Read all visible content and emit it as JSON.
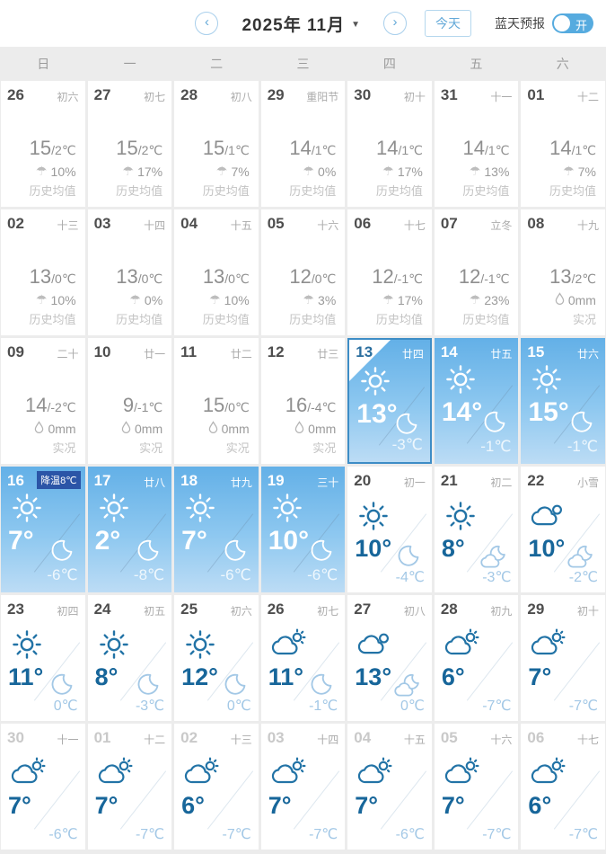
{
  "header": {
    "title": "2025年 11月",
    "prev_label": "‹",
    "next_label": "›",
    "caret": "▼",
    "today_label": "今天",
    "blue_sky_label": "蓝天预报",
    "toggle_label": "开",
    "toggle_state": "on"
  },
  "weekdays": [
    "日",
    "一",
    "二",
    "三",
    "四",
    "五",
    "六"
  ],
  "colors": {
    "accent_blue": "#64a9d8",
    "toggle_on": "#56abdf",
    "highlight_top": "#63b0e7",
    "highlight_bottom": "#bcdcf5",
    "selected_border": "#3d8dc6",
    "badge_bg": "#2b55a7",
    "day_temp_text": "#17669a",
    "night_temp_text": "#a3c8e6",
    "history_text": "#8f8f8f"
  },
  "cells": [
    {
      "date": "26",
      "lunar": "初六",
      "type": "history",
      "temp_main": "15",
      "temp_sub": "/2℃",
      "precip": "10%",
      "note": "历史均值"
    },
    {
      "date": "27",
      "lunar": "初七",
      "type": "history",
      "temp_main": "15",
      "temp_sub": "/2℃",
      "precip": "17%",
      "note": "历史均值"
    },
    {
      "date": "28",
      "lunar": "初八",
      "type": "history",
      "temp_main": "15",
      "temp_sub": "/1℃",
      "precip": "7%",
      "note": "历史均值"
    },
    {
      "date": "29",
      "lunar": "重阳节",
      "type": "history",
      "temp_main": "14",
      "temp_sub": "/1℃",
      "precip": "0%",
      "note": "历史均值"
    },
    {
      "date": "30",
      "lunar": "初十",
      "type": "history",
      "temp_main": "14",
      "temp_sub": "/1℃",
      "precip": "17%",
      "note": "历史均值"
    },
    {
      "date": "31",
      "lunar": "十一",
      "type": "history",
      "temp_main": "14",
      "temp_sub": "/1℃",
      "precip": "13%",
      "note": "历史均值"
    },
    {
      "date": "01",
      "lunar": "十二",
      "type": "history",
      "temp_main": "14",
      "temp_sub": "/1℃",
      "precip": "7%",
      "note": "历史均值"
    },
    {
      "date": "02",
      "lunar": "十三",
      "type": "history",
      "temp_main": "13",
      "temp_sub": "/0℃",
      "precip": "10%",
      "note": "历史均值"
    },
    {
      "date": "03",
      "lunar": "十四",
      "type": "history",
      "temp_main": "13",
      "temp_sub": "/0℃",
      "precip": "0%",
      "note": "历史均值"
    },
    {
      "date": "04",
      "lunar": "十五",
      "type": "history",
      "temp_main": "13",
      "temp_sub": "/0℃",
      "precip": "10%",
      "note": "历史均值"
    },
    {
      "date": "05",
      "lunar": "十六",
      "type": "history",
      "temp_main": "12",
      "temp_sub": "/0℃",
      "precip": "3%",
      "note": "历史均值"
    },
    {
      "date": "06",
      "lunar": "十七",
      "type": "history",
      "temp_main": "12",
      "temp_sub": "/-1℃",
      "precip": "17%",
      "note": "历史均值"
    },
    {
      "date": "07",
      "lunar": "立冬",
      "type": "history",
      "temp_main": "12",
      "temp_sub": "/-1℃",
      "precip": "23%",
      "note": "历史均值"
    },
    {
      "date": "08",
      "lunar": "十九",
      "type": "actual",
      "temp_main": "13",
      "temp_sub": "/2℃",
      "precip": "0mm",
      "note": "实况"
    },
    {
      "date": "09",
      "lunar": "二十",
      "type": "actual",
      "temp_main": "14",
      "temp_sub": "/-2℃",
      "precip": "0mm",
      "note": "实况"
    },
    {
      "date": "10",
      "lunar": "廿一",
      "type": "actual",
      "temp_main": "9",
      "temp_sub": "/-1℃",
      "precip": "0mm",
      "note": "实况"
    },
    {
      "date": "11",
      "lunar": "廿二",
      "type": "actual",
      "temp_main": "15",
      "temp_sub": "/0℃",
      "precip": "0mm",
      "note": "实况"
    },
    {
      "date": "12",
      "lunar": "廿三",
      "type": "actual",
      "temp_main": "16",
      "temp_sub": "/-4℃",
      "precip": "0mm",
      "note": "实况"
    },
    {
      "date": "13",
      "lunar": "廿四",
      "type": "blue",
      "selected": true,
      "day_icon": "sun",
      "day_temp": "13°",
      "night_icon": "moon",
      "night_temp": "-3℃"
    },
    {
      "date": "14",
      "lunar": "廿五",
      "type": "blue",
      "day_icon": "sun",
      "day_temp": "14°",
      "night_icon": "moon",
      "night_temp": "-1℃"
    },
    {
      "date": "15",
      "lunar": "廿六",
      "type": "blue",
      "day_icon": "sun",
      "day_temp": "15°",
      "night_icon": "moon",
      "night_temp": "-1℃"
    },
    {
      "date": "16",
      "badge": "降温8℃",
      "type": "blue",
      "day_icon": "sun",
      "day_temp": "7°",
      "night_icon": "moon",
      "night_temp": "-6℃"
    },
    {
      "date": "17",
      "lunar": "廿八",
      "type": "blue",
      "day_icon": "sun",
      "day_temp": "2°",
      "night_icon": "moon",
      "night_temp": "-8℃"
    },
    {
      "date": "18",
      "lunar": "廿九",
      "type": "blue",
      "day_icon": "sun",
      "day_temp": "7°",
      "night_icon": "moon",
      "night_temp": "-6℃"
    },
    {
      "date": "19",
      "lunar": "三十",
      "type": "blue",
      "day_icon": "sun",
      "day_temp": "10°",
      "night_icon": "moon",
      "night_temp": "-6℃"
    },
    {
      "date": "20",
      "lunar": "初一",
      "type": "forecast",
      "day_icon": "sun",
      "day_temp": "10°",
      "night_icon": "moon",
      "night_temp": "-4℃"
    },
    {
      "date": "21",
      "lunar": "初二",
      "type": "forecast",
      "day_icon": "sun",
      "day_temp": "8°",
      "night_icon": "cloud-moon",
      "night_temp": "-3℃"
    },
    {
      "date": "22",
      "lunar": "小雪",
      "type": "forecast",
      "day_icon": "cloud",
      "day_temp": "10°",
      "night_icon": "cloud-moon",
      "night_temp": "-2℃"
    },
    {
      "date": "23",
      "lunar": "初四",
      "type": "forecast",
      "day_icon": "sun",
      "day_temp": "11°",
      "night_icon": "moon",
      "night_temp": "0℃"
    },
    {
      "date": "24",
      "lunar": "初五",
      "type": "forecast",
      "day_icon": "sun",
      "day_temp": "8°",
      "night_icon": "moon",
      "night_temp": "-3℃"
    },
    {
      "date": "25",
      "lunar": "初六",
      "type": "forecast",
      "day_icon": "sun",
      "day_temp": "12°",
      "night_icon": "moon",
      "night_temp": "0℃"
    },
    {
      "date": "26",
      "lunar": "初七",
      "type": "forecast",
      "day_icon": "partly",
      "day_temp": "11°",
      "night_icon": "moon",
      "night_temp": "-1℃"
    },
    {
      "date": "27",
      "lunar": "初八",
      "type": "forecast",
      "day_icon": "cloud",
      "day_temp": "13°",
      "night_icon": "cloud-moon",
      "night_temp": "0℃"
    },
    {
      "date": "28",
      "lunar": "初九",
      "type": "forecast",
      "day_icon": "partly",
      "day_temp": "6°",
      "night_icon": "none",
      "night_temp": "-7℃"
    },
    {
      "date": "29",
      "lunar": "初十",
      "type": "forecast",
      "day_icon": "partly",
      "day_temp": "7°",
      "night_icon": "none",
      "night_temp": "-7℃"
    },
    {
      "date": "30",
      "lunar": "十一",
      "type": "forecast",
      "dim": true,
      "day_icon": "partly",
      "day_temp": "7°",
      "night_icon": "none",
      "night_temp": "-6℃"
    },
    {
      "date": "01",
      "lunar": "十二",
      "type": "forecast",
      "dim": true,
      "day_icon": "partly",
      "day_temp": "7°",
      "night_icon": "none",
      "night_temp": "-7℃"
    },
    {
      "date": "02",
      "lunar": "十三",
      "type": "forecast",
      "dim": true,
      "day_icon": "partly",
      "day_temp": "6°",
      "night_icon": "none",
      "night_temp": "-7℃"
    },
    {
      "date": "03",
      "lunar": "十四",
      "type": "forecast",
      "dim": true,
      "day_icon": "partly",
      "day_temp": "7°",
      "night_icon": "none",
      "night_temp": "-7℃"
    },
    {
      "date": "04",
      "lunar": "十五",
      "type": "forecast",
      "dim": true,
      "day_icon": "partly",
      "day_temp": "7°",
      "night_icon": "none",
      "night_temp": "-6℃"
    },
    {
      "date": "05",
      "lunar": "十六",
      "type": "forecast",
      "dim": true,
      "day_icon": "partly",
      "day_temp": "7°",
      "night_icon": "none",
      "night_temp": "-7℃"
    },
    {
      "date": "06",
      "lunar": "十七",
      "type": "forecast",
      "dim": true,
      "day_icon": "partly",
      "day_temp": "6°",
      "night_icon": "none",
      "night_temp": "-7℃"
    }
  ]
}
